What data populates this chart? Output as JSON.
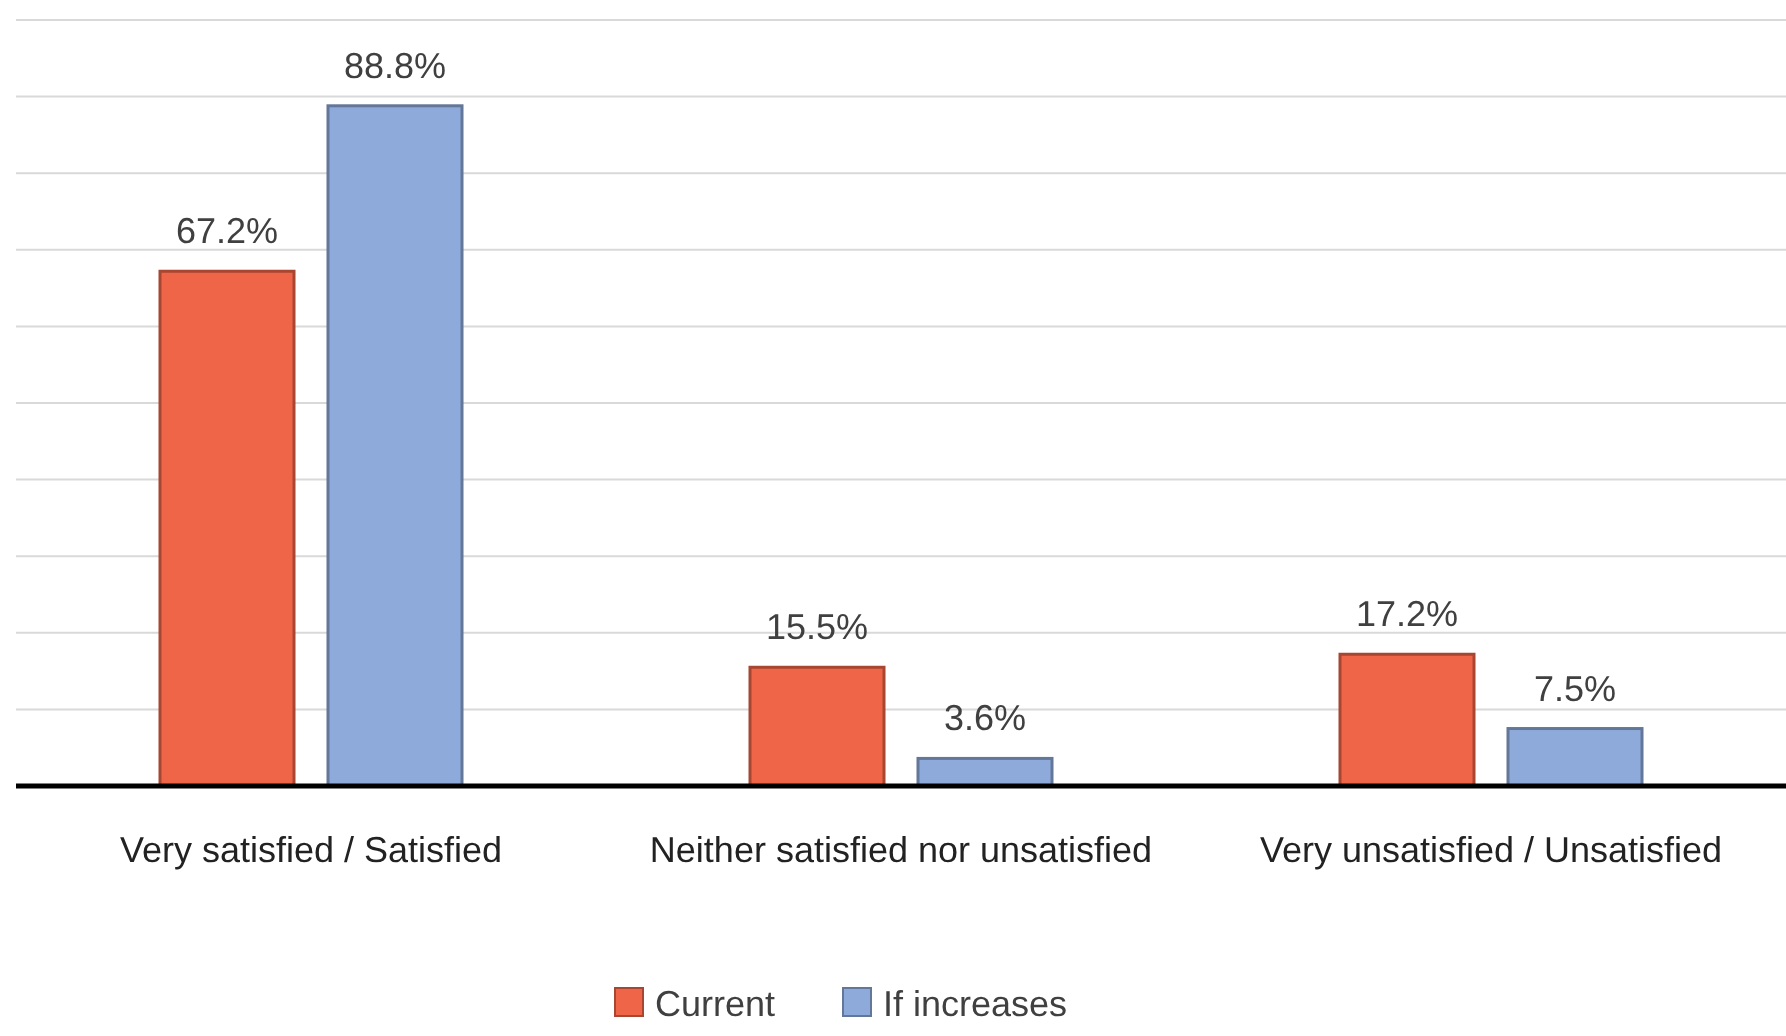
{
  "chart_data": {
    "type": "bar",
    "categories": [
      "Very satisfied / Satisfied",
      "Neither satisfied nor unsatisfied",
      "Very unsatisfied / Unsatisfied"
    ],
    "series": [
      {
        "name": "Current",
        "color": "#ef6548",
        "values": [
          67.2,
          15.5,
          17.2
        ],
        "value_labels": [
          "67.2%",
          "15.5%",
          "17.2%"
        ]
      },
      {
        "name": "If increases",
        "color": "#8eaadb",
        "values": [
          88.8,
          3.6,
          7.5
        ],
        "value_labels": [
          "88.8%",
          "3.6%",
          "7.5%"
        ]
      }
    ],
    "ylim": [
      0,
      100
    ],
    "yticks": [
      {
        "value": 0,
        "label": null
      },
      {
        "value": 10,
        "label": null
      },
      {
        "value": 20,
        "label": null
      },
      {
        "value": 30,
        "label": null
      },
      {
        "value": 40,
        "label": null
      },
      {
        "value": 50,
        "label": null
      },
      {
        "value": 60,
        "label": null
      },
      {
        "value": 70,
        "label": null
      },
      {
        "value": 80,
        "label": null
      },
      {
        "value": 90,
        "label": null
      },
      {
        "value": 100,
        "label": null
      }
    ],
    "grid": "y",
    "legend": "bottom"
  }
}
